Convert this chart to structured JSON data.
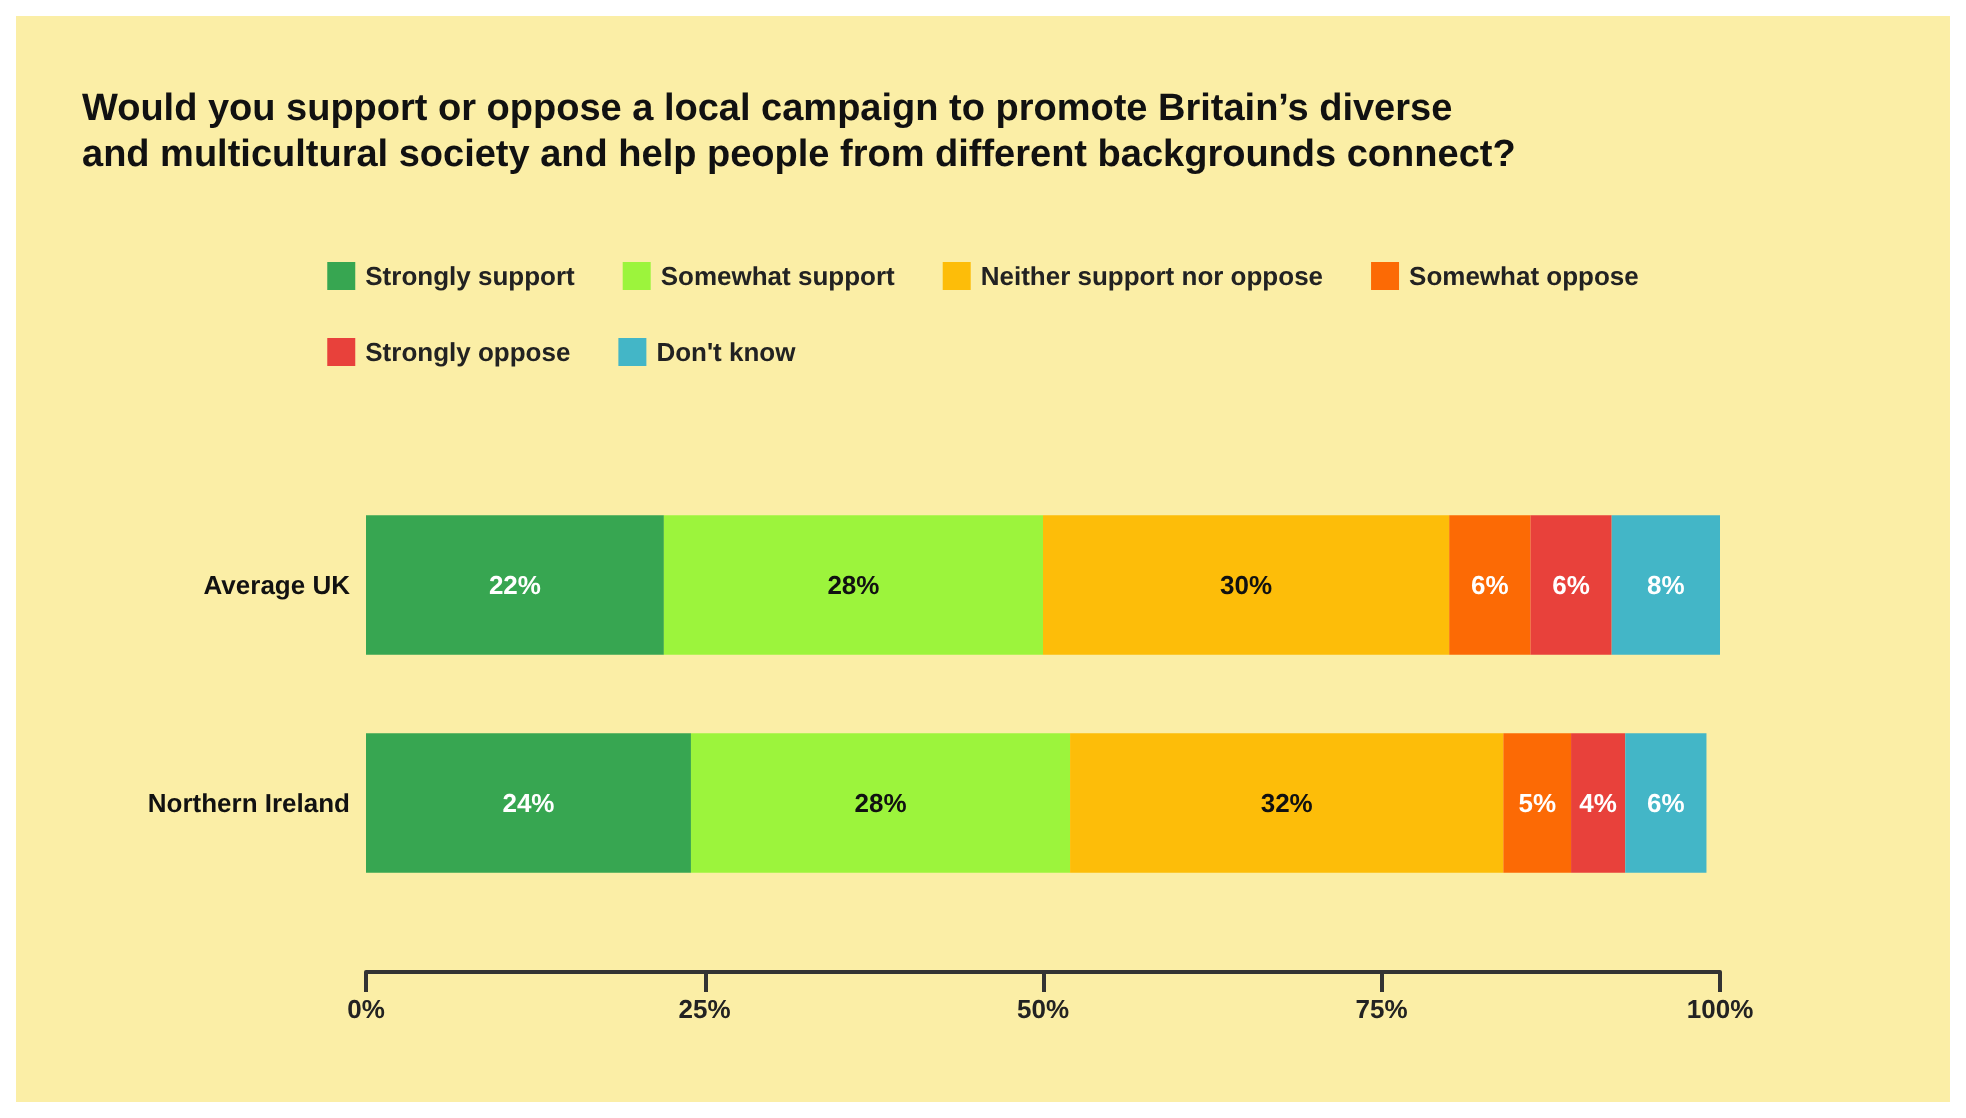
{
  "chart_data": {
    "type": "bar",
    "orientation": "horizontal",
    "stacked": true,
    "title": "Would you support or oppose a local campaign to promote Britain’s diverse and multicultural society and help people from different backgrounds connect?",
    "categories": [
      "Average UK",
      "Northern Ireland"
    ],
    "series": [
      {
        "name": "Strongly support",
        "color": "#37a651",
        "values": [
          22,
          24
        ],
        "value_labels": [
          "22%",
          "24%"
        ]
      },
      {
        "name": "Somewhat support",
        "color": "#9cf43c",
        "values": [
          28,
          28
        ],
        "value_labels": [
          "28%",
          "28%"
        ]
      },
      {
        "name": "Neither support nor oppose",
        "color": "#fdbd09",
        "values": [
          30,
          32
        ],
        "value_labels": [
          "30%",
          "32%"
        ]
      },
      {
        "name": "Somewhat oppose",
        "color": "#fc6a05",
        "values": [
          6,
          5
        ],
        "value_labels": [
          "6%",
          "5%"
        ]
      },
      {
        "name": "Strongly oppose",
        "color": "#e8413b",
        "values": [
          6,
          4
        ],
        "value_labels": [
          "6%",
          "4%"
        ]
      },
      {
        "name": "Don't know",
        "color": "#43b6c7",
        "values": [
          8,
          6
        ],
        "value_labels": [
          "8%",
          "6%"
        ]
      }
    ],
    "xlim": [
      0,
      100
    ],
    "xticks": [
      {
        "value": 0,
        "label": "0%"
      },
      {
        "value": 25,
        "label": "25%"
      },
      {
        "value": 50,
        "label": "50%"
      },
      {
        "value": 75,
        "label": "75%"
      },
      {
        "value": 100,
        "label": "100%"
      }
    ],
    "grid": false,
    "legend": "top"
  }
}
